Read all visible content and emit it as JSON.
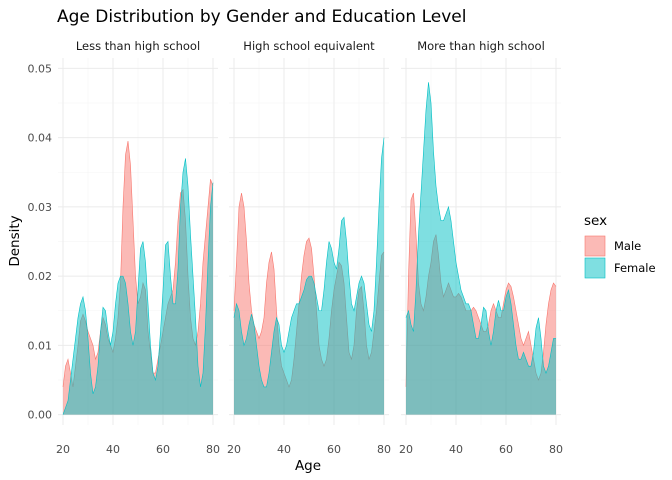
{
  "chart_data": {
    "type": "area",
    "title": "Age Distribution by Gender and Education Level",
    "xlabel": "Age",
    "ylabel": "Density",
    "xlim": [
      18,
      82
    ],
    "ylim": [
      -0.0015,
      0.0515
    ],
    "x_ticks": [
      20,
      40,
      60,
      80
    ],
    "y_ticks": [
      0,
      0.01,
      0.02,
      0.03,
      0.04,
      0.05
    ],
    "y_tick_labels": [
      "0.00",
      "0.01",
      "0.02",
      "0.03",
      "0.04",
      "0.05"
    ],
    "grid": true,
    "legend": {
      "title": "sex",
      "position": "right",
      "entries": [
        "Male",
        "Female"
      ]
    },
    "series_styles": {
      "Male": {
        "fill": "#F8766D",
        "stroke": "#F8766D"
      },
      "Female": {
        "fill": "#00BFC4",
        "stroke": "#00BFC4"
      }
    },
    "facets": [
      {
        "label": "Less than high school",
        "series": [
          {
            "name": "Male",
            "x": [
              20,
              21,
              22,
              23,
              24,
              25,
              26,
              27,
              28,
              29,
              30,
              31,
              32,
              33,
              34,
              35,
              36,
              37,
              38,
              39,
              40,
              41,
              42,
              43,
              44,
              45,
              46,
              47,
              48,
              49,
              50,
              51,
              52,
              53,
              54,
              55,
              56,
              57,
              58,
              59,
              60,
              61,
              62,
              63,
              64,
              65,
              66,
              67,
              68,
              69,
              70,
              71,
              72,
              73,
              74,
              75,
              76,
              77,
              78,
              79,
              80
            ],
            "y": [
              0.004,
              0.007,
              0.008,
              0.006,
              0.004,
              0.007,
              0.01,
              0.0135,
              0.0145,
              0.0135,
              0.012,
              0.011,
              0.01,
              0.008,
              0.009,
              0.012,
              0.014,
              0.013,
              0.011,
              0.01,
              0.009,
              0.011,
              0.014,
              0.019,
              0.03,
              0.0375,
              0.0395,
              0.036,
              0.028,
              0.02,
              0.016,
              0.017,
              0.019,
              0.018,
              0.012,
              0.009,
              0.006,
              0.006,
              0.008,
              0.01,
              0.012,
              0.014,
              0.016,
              0.017,
              0.018,
              0.022,
              0.028,
              0.032,
              0.0325,
              0.028,
              0.02,
              0.014,
              0.011,
              0.01,
              0.012,
              0.016,
              0.022,
              0.026,
              0.03,
              0.034,
              0.033
            ]
          },
          {
            "name": "Female",
            "x": [
              20,
              21,
              22,
              23,
              24,
              25,
              26,
              27,
              28,
              29,
              30,
              31,
              32,
              33,
              34,
              35,
              36,
              37,
              38,
              39,
              40,
              41,
              42,
              43,
              44,
              45,
              46,
              47,
              48,
              49,
              50,
              51,
              52,
              53,
              54,
              55,
              56,
              57,
              58,
              59,
              60,
              61,
              62,
              63,
              64,
              65,
              66,
              67,
              68,
              69,
              70,
              71,
              72,
              73,
              74,
              75,
              76,
              77,
              78,
              79,
              80
            ],
            "y": [
              0.0,
              0.001,
              0.002,
              0.005,
              0.008,
              0.011,
              0.014,
              0.016,
              0.017,
              0.015,
              0.011,
              0.006,
              0.003,
              0.004,
              0.007,
              0.012,
              0.0155,
              0.015,
              0.012,
              0.01,
              0.012,
              0.016,
              0.019,
              0.02,
              0.02,
              0.019,
              0.016,
              0.012,
              0.01,
              0.012,
              0.018,
              0.024,
              0.025,
              0.022,
              0.016,
              0.01,
              0.006,
              0.005,
              0.007,
              0.012,
              0.018,
              0.0245,
              0.025,
              0.02,
              0.016,
              0.016,
              0.021,
              0.03,
              0.035,
              0.037,
              0.033,
              0.026,
              0.02,
              0.014,
              0.007,
              0.004,
              0.006,
              0.013,
              0.022,
              0.03,
              0.0335
            ]
          }
        ]
      },
      {
        "label": "High school equivalent",
        "series": [
          {
            "name": "Male",
            "x": [
              20,
              21,
              22,
              23,
              24,
              25,
              26,
              27,
              28,
              29,
              30,
              31,
              32,
              33,
              34,
              35,
              36,
              37,
              38,
              39,
              40,
              41,
              42,
              43,
              44,
              45,
              46,
              47,
              48,
              49,
              50,
              51,
              52,
              53,
              54,
              55,
              56,
              57,
              58,
              59,
              60,
              61,
              62,
              63,
              64,
              65,
              66,
              67,
              68,
              69,
              70,
              71,
              72,
              73,
              74,
              75,
              76,
              77,
              78,
              79,
              80
            ],
            "y": [
              0.015,
              0.022,
              0.03,
              0.032,
              0.03,
              0.025,
              0.019,
              0.015,
              0.013,
              0.012,
              0.011,
              0.012,
              0.014,
              0.019,
              0.022,
              0.0235,
              0.021,
              0.015,
              0.01,
              0.007,
              0.006,
              0.005,
              0.004,
              0.005,
              0.008,
              0.012,
              0.016,
              0.02,
              0.023,
              0.025,
              0.0255,
              0.024,
              0.02,
              0.015,
              0.01,
              0.008,
              0.007,
              0.008,
              0.011,
              0.015,
              0.018,
              0.02,
              0.022,
              0.0215,
              0.019,
              0.014,
              0.009,
              0.008,
              0.01,
              0.015,
              0.018,
              0.0185,
              0.015,
              0.01,
              0.008,
              0.009,
              0.012,
              0.015,
              0.019,
              0.023,
              0.0235
            ]
          },
          {
            "name": "Female",
            "x": [
              20,
              21,
              22,
              23,
              24,
              25,
              26,
              27,
              28,
              29,
              30,
              31,
              32,
              33,
              34,
              35,
              36,
              37,
              38,
              39,
              40,
              41,
              42,
              43,
              44,
              45,
              46,
              47,
              48,
              49,
              50,
              51,
              52,
              53,
              54,
              55,
              56,
              57,
              58,
              59,
              60,
              61,
              62,
              63,
              64,
              65,
              66,
              67,
              68,
              69,
              70,
              71,
              72,
              73,
              74,
              75,
              76,
              77,
              78,
              79,
              80
            ],
            "y": [
              0.014,
              0.016,
              0.015,
              0.012,
              0.01,
              0.011,
              0.013,
              0.0145,
              0.013,
              0.01,
              0.007,
              0.005,
              0.004,
              0.004,
              0.006,
              0.009,
              0.012,
              0.014,
              0.013,
              0.01,
              0.009,
              0.01,
              0.012,
              0.014,
              0.015,
              0.016,
              0.016,
              0.017,
              0.018,
              0.0195,
              0.02,
              0.02,
              0.019,
              0.017,
              0.015,
              0.015,
              0.018,
              0.022,
              0.025,
              0.024,
              0.022,
              0.021,
              0.024,
              0.028,
              0.0285,
              0.025,
              0.02,
              0.016,
              0.015,
              0.017,
              0.019,
              0.02,
              0.019,
              0.016,
              0.013,
              0.012,
              0.015,
              0.022,
              0.03,
              0.037,
              0.04
            ]
          }
        ]
      },
      {
        "label": "More than high school",
        "series": [
          {
            "name": "Male",
            "x": [
              20,
              21,
              22,
              23,
              24,
              25,
              26,
              27,
              28,
              29,
              30,
              31,
              32,
              33,
              34,
              35,
              36,
              37,
              38,
              39,
              40,
              41,
              42,
              43,
              44,
              45,
              46,
              47,
              48,
              49,
              50,
              51,
              52,
              53,
              54,
              55,
              56,
              57,
              58,
              59,
              60,
              61,
              62,
              63,
              64,
              65,
              66,
              67,
              68,
              69,
              70,
              71,
              72,
              73,
              74,
              75,
              76,
              77,
              78,
              79,
              80
            ],
            "y": [
              0.004,
              0.02,
              0.031,
              0.032,
              0.026,
              0.019,
              0.016,
              0.015,
              0.017,
              0.02,
              0.022,
              0.025,
              0.026,
              0.023,
              0.019,
              0.017,
              0.018,
              0.019,
              0.018,
              0.017,
              0.017,
              0.0175,
              0.017,
              0.016,
              0.015,
              0.015,
              0.015,
              0.0155,
              0.015,
              0.014,
              0.013,
              0.012,
              0.012,
              0.013,
              0.015,
              0.016,
              0.015,
              0.014,
              0.014,
              0.016,
              0.018,
              0.019,
              0.0185,
              0.017,
              0.015,
              0.013,
              0.011,
              0.01,
              0.011,
              0.012,
              0.01,
              0.008,
              0.006,
              0.005,
              0.006,
              0.009,
              0.013,
              0.016,
              0.018,
              0.019,
              0.0185
            ]
          },
          {
            "name": "Female",
            "x": [
              20,
              21,
              22,
              23,
              24,
              25,
              26,
              27,
              28,
              29,
              30,
              31,
              32,
              33,
              34,
              35,
              36,
              37,
              38,
              39,
              40,
              41,
              42,
              43,
              44,
              45,
              46,
              47,
              48,
              49,
              50,
              51,
              52,
              53,
              54,
              55,
              56,
              57,
              58,
              59,
              60,
              61,
              62,
              63,
              64,
              65,
              66,
              67,
              68,
              69,
              70,
              71,
              72,
              73,
              74,
              75,
              76,
              77,
              78,
              79,
              80
            ],
            "y": [
              0.014,
              0.015,
              0.013,
              0.012,
              0.018,
              0.026,
              0.032,
              0.038,
              0.044,
              0.048,
              0.045,
              0.038,
              0.033,
              0.03,
              0.028,
              0.028,
              0.029,
              0.03,
              0.028,
              0.025,
              0.022,
              0.02,
              0.018,
              0.017,
              0.016,
              0.016,
              0.015,
              0.013,
              0.011,
              0.011,
              0.013,
              0.0155,
              0.015,
              0.012,
              0.01,
              0.012,
              0.015,
              0.0165,
              0.015,
              0.015,
              0.017,
              0.018,
              0.016,
              0.013,
              0.01,
              0.008,
              0.008,
              0.009,
              0.008,
              0.007,
              0.007,
              0.009,
              0.0125,
              0.014,
              0.011,
              0.007,
              0.006,
              0.007,
              0.009,
              0.011,
              0.011
            ]
          }
        ]
      }
    ]
  }
}
